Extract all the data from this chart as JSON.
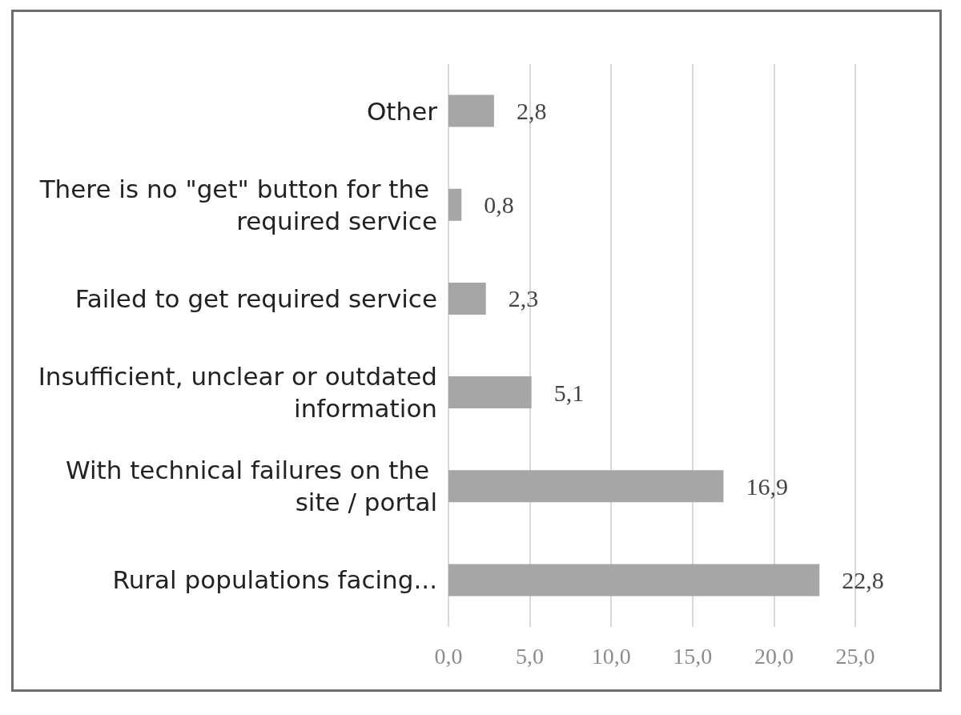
{
  "chart_data": {
    "type": "bar",
    "orientation": "horizontal",
    "categories": [
      "Other",
      "There is no \"get\" button for the required service",
      "Failed to get required service",
      "Insufficient, unclear or outdated information",
      "With technical failures on the site / portal",
      "Rural populations facing..."
    ],
    "values": [
      2.8,
      0.8,
      2.3,
      5.1,
      16.9,
      22.8
    ],
    "value_labels": [
      "2,8",
      "0,8",
      "2,3",
      "5,1",
      "16,9",
      "22,8"
    ],
    "color": "#a6a6a6",
    "xlim": [
      0,
      25
    ],
    "xticks": [
      {
        "value": 0,
        "label": "0,0"
      },
      {
        "value": 5,
        "label": "5,0"
      },
      {
        "value": 10,
        "label": "10,0"
      },
      {
        "value": 15,
        "label": "15,0"
      },
      {
        "value": 20,
        "label": "20,0"
      },
      {
        "value": 25,
        "label": "25,0"
      }
    ],
    "grid": "x"
  }
}
